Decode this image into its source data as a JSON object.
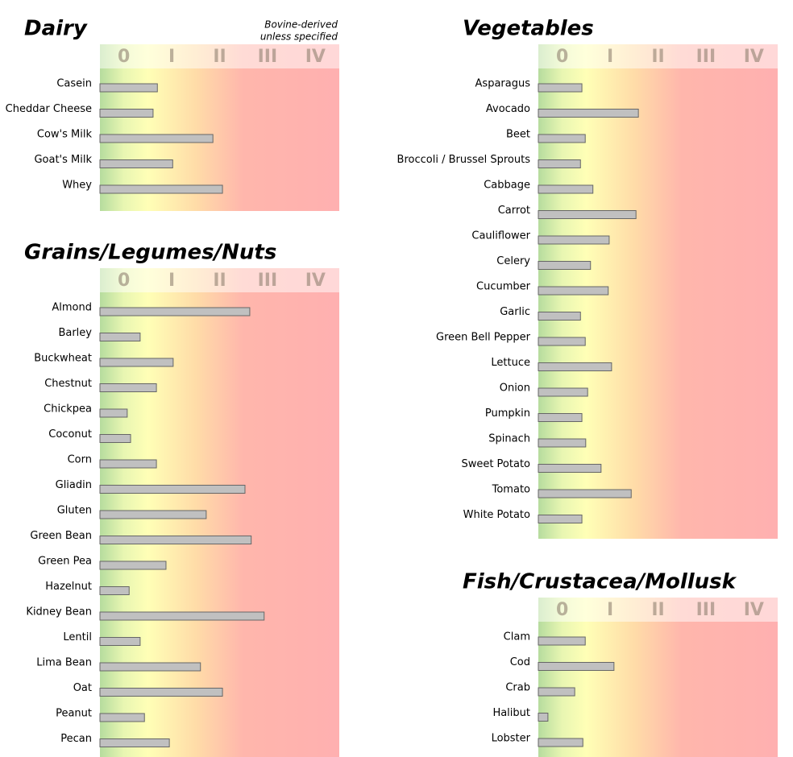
{
  "chart_data": [
    {
      "type": "bar",
      "orientation": "horizontal",
      "title": "Dairy",
      "note": [
        "Bovine-derived",
        "unless specified"
      ],
      "categories": [
        "Casein",
        "Cheddar Cheese",
        "Cow's Milk",
        "Goat's Milk",
        "Whey"
      ],
      "values": [
        1.2,
        1.11,
        2.36,
        1.52,
        2.56
      ],
      "color": "#c0c0c0",
      "xlim": [
        0,
        5
      ],
      "xticks": [
        {
          "value": 0.5,
          "label": "0"
        },
        {
          "value": 1.5,
          "label": "I"
        },
        {
          "value": 2.5,
          "label": "II"
        },
        {
          "value": 3.5,
          "label": "III"
        },
        {
          "value": 4.5,
          "label": "IV"
        }
      ]
    },
    {
      "type": "bar",
      "orientation": "horizontal",
      "title": "Grains/Legumes/Nuts",
      "categories": [
        "Almond",
        "Barley",
        "Buckwheat",
        "Chestnut",
        "Chickpea",
        "Coconut",
        "Corn",
        "Gliadin",
        "Gluten",
        "Green Bean",
        "Green Pea",
        "Hazelnut",
        "Kidney Bean",
        "Lentil",
        "Lima Bean",
        "Oat",
        "Peanut",
        "Pecan"
      ],
      "values": [
        3.13,
        0.84,
        1.53,
        1.18,
        0.57,
        0.64,
        1.18,
        3.03,
        2.22,
        3.16,
        1.38,
        0.61,
        3.43,
        0.84,
        2.1,
        2.56,
        0.93,
        1.45
      ],
      "color": "#c0c0c0",
      "xlim": [
        0,
        5
      ],
      "xticks": [
        {
          "value": 0.5,
          "label": "0"
        },
        {
          "value": 1.5,
          "label": "I"
        },
        {
          "value": 2.5,
          "label": "II"
        },
        {
          "value": 3.5,
          "label": "III"
        },
        {
          "value": 4.5,
          "label": "IV"
        }
      ]
    },
    {
      "type": "bar",
      "orientation": "horizontal",
      "title": "Vegetables",
      "categories": [
        "Asparagus",
        "Avocado",
        "Beet",
        "Broccoli / Brussel Sprouts",
        "Cabbage",
        "Carrot",
        "Cauliflower",
        "Celery",
        "Cucumber",
        "Garlic",
        "Green Bell Pepper",
        "Lettuce",
        "Onion",
        "Pumpkin",
        "Spinach",
        "Sweet Potato",
        "Tomato",
        "White Potato"
      ],
      "values": [
        0.91,
        2.09,
        0.98,
        0.88,
        1.14,
        2.04,
        1.48,
        1.09,
        1.46,
        0.88,
        0.98,
        1.53,
        1.03,
        0.91,
        0.99,
        1.31,
        1.94,
        0.91
      ],
      "color": "#c0c0c0",
      "xlim": [
        0,
        5
      ],
      "xticks": [
        {
          "value": 0.5,
          "label": "0"
        },
        {
          "value": 1.5,
          "label": "I"
        },
        {
          "value": 2.5,
          "label": "II"
        },
        {
          "value": 3.5,
          "label": "III"
        },
        {
          "value": 4.5,
          "label": "IV"
        }
      ]
    },
    {
      "type": "bar",
      "orientation": "horizontal",
      "title": "Fish/Crustacea/Mollusk",
      "categories": [
        "Clam",
        "Cod",
        "Crab",
        "Halibut",
        "Lobster"
      ],
      "values": [
        0.98,
        1.58,
        0.76,
        0.2,
        0.93
      ],
      "color": "#c0c0c0",
      "xlim": [
        0,
        5
      ],
      "xticks": [
        {
          "value": 0.5,
          "label": "0"
        },
        {
          "value": 1.5,
          "label": "I"
        },
        {
          "value": 2.5,
          "label": "II"
        },
        {
          "value": 3.5,
          "label": "III"
        },
        {
          "value": 4.5,
          "label": "IV"
        }
      ]
    }
  ]
}
